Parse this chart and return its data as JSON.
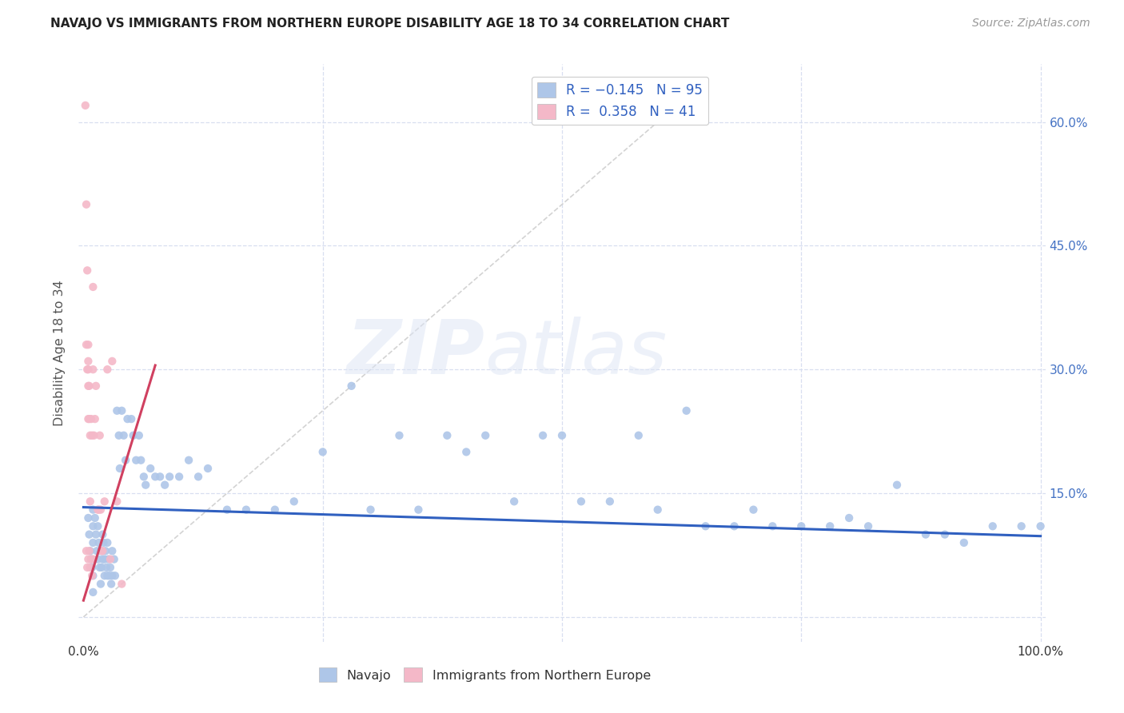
{
  "title": "NAVAJO VS IMMIGRANTS FROM NORTHERN EUROPE DISABILITY AGE 18 TO 34 CORRELATION CHART",
  "source": "Source: ZipAtlas.com",
  "ylabel": "Disability Age 18 to 34",
  "xlim": [
    -0.005,
    1.005
  ],
  "ylim": [
    -0.03,
    0.67
  ],
  "xticks": [
    0.0,
    0.25,
    0.5,
    0.75,
    1.0
  ],
  "xtick_labels": [
    "0.0%",
    "",
    "",
    "",
    "100.0%"
  ],
  "ytick_labels": [
    "",
    "15.0%",
    "30.0%",
    "45.0%",
    "60.0%"
  ],
  "yticks": [
    0.0,
    0.15,
    0.3,
    0.45,
    0.6
  ],
  "watermark_zip": "ZIP",
  "watermark_atlas": "atlas",
  "navajo_color": "#aec6e8",
  "immigrant_color": "#f4b8c8",
  "navajo_line_color": "#3060c0",
  "immigrant_line_color": "#d04060",
  "diagonal_color": "#c8c8c8",
  "background_color": "#ffffff",
  "grid_color": "#d8dff0",
  "navajo_line_x0": 0.0,
  "navajo_line_y0": 0.133,
  "navajo_line_x1": 1.0,
  "navajo_line_y1": 0.098,
  "immigrant_line_x0": 0.0,
  "immigrant_line_y0": 0.02,
  "immigrant_line_x1": 0.075,
  "immigrant_line_y1": 0.305,
  "navajo_x": [
    0.005,
    0.006,
    0.007,
    0.008,
    0.009,
    0.01,
    0.01,
    0.01,
    0.01,
    0.01,
    0.012,
    0.013,
    0.014,
    0.015,
    0.015,
    0.016,
    0.017,
    0.018,
    0.018,
    0.019,
    0.02,
    0.02,
    0.021,
    0.022,
    0.022,
    0.023,
    0.024,
    0.025,
    0.025,
    0.026,
    0.027,
    0.028,
    0.029,
    0.03,
    0.03,
    0.032,
    0.033,
    0.035,
    0.037,
    0.038,
    0.04,
    0.042,
    0.044,
    0.046,
    0.05,
    0.052,
    0.055,
    0.058,
    0.06,
    0.063,
    0.065,
    0.07,
    0.075,
    0.08,
    0.085,
    0.09,
    0.1,
    0.11,
    0.12,
    0.13,
    0.15,
    0.17,
    0.2,
    0.22,
    0.25,
    0.28,
    0.3,
    0.33,
    0.35,
    0.38,
    0.4,
    0.42,
    0.45,
    0.48,
    0.5,
    0.52,
    0.55,
    0.58,
    0.6,
    0.63,
    0.65,
    0.68,
    0.7,
    0.72,
    0.75,
    0.78,
    0.8,
    0.82,
    0.85,
    0.88,
    0.9,
    0.92,
    0.95,
    0.98,
    1.0
  ],
  "navajo_y": [
    0.12,
    0.1,
    0.08,
    0.07,
    0.06,
    0.13,
    0.11,
    0.09,
    0.05,
    0.03,
    0.12,
    0.1,
    0.08,
    0.11,
    0.07,
    0.09,
    0.06,
    0.08,
    0.04,
    0.06,
    0.1,
    0.07,
    0.09,
    0.07,
    0.05,
    0.08,
    0.06,
    0.09,
    0.05,
    0.07,
    0.05,
    0.06,
    0.04,
    0.08,
    0.05,
    0.07,
    0.05,
    0.25,
    0.22,
    0.18,
    0.25,
    0.22,
    0.19,
    0.24,
    0.24,
    0.22,
    0.19,
    0.22,
    0.19,
    0.17,
    0.16,
    0.18,
    0.17,
    0.17,
    0.16,
    0.17,
    0.17,
    0.19,
    0.17,
    0.18,
    0.13,
    0.13,
    0.13,
    0.14,
    0.2,
    0.28,
    0.13,
    0.22,
    0.13,
    0.22,
    0.2,
    0.22,
    0.14,
    0.22,
    0.22,
    0.14,
    0.14,
    0.22,
    0.13,
    0.25,
    0.11,
    0.11,
    0.13,
    0.11,
    0.11,
    0.11,
    0.12,
    0.11,
    0.16,
    0.1,
    0.1,
    0.09,
    0.11,
    0.11,
    0.11
  ],
  "immigrant_x": [
    0.002,
    0.003,
    0.003,
    0.003,
    0.004,
    0.004,
    0.004,
    0.005,
    0.005,
    0.005,
    0.005,
    0.005,
    0.005,
    0.006,
    0.006,
    0.006,
    0.007,
    0.007,
    0.007,
    0.008,
    0.008,
    0.009,
    0.009,
    0.01,
    0.01,
    0.01,
    0.011,
    0.012,
    0.013,
    0.015,
    0.016,
    0.017,
    0.018,
    0.019,
    0.02,
    0.022,
    0.025,
    0.028,
    0.03,
    0.035,
    0.04
  ],
  "immigrant_y": [
    0.62,
    0.5,
    0.33,
    0.08,
    0.42,
    0.3,
    0.06,
    0.33,
    0.31,
    0.3,
    0.28,
    0.24,
    0.07,
    0.28,
    0.24,
    0.08,
    0.22,
    0.14,
    0.06,
    0.24,
    0.07,
    0.22,
    0.05,
    0.4,
    0.3,
    0.07,
    0.22,
    0.24,
    0.28,
    0.13,
    0.13,
    0.22,
    0.13,
    0.08,
    0.08,
    0.14,
    0.3,
    0.07,
    0.31,
    0.14,
    0.04
  ]
}
